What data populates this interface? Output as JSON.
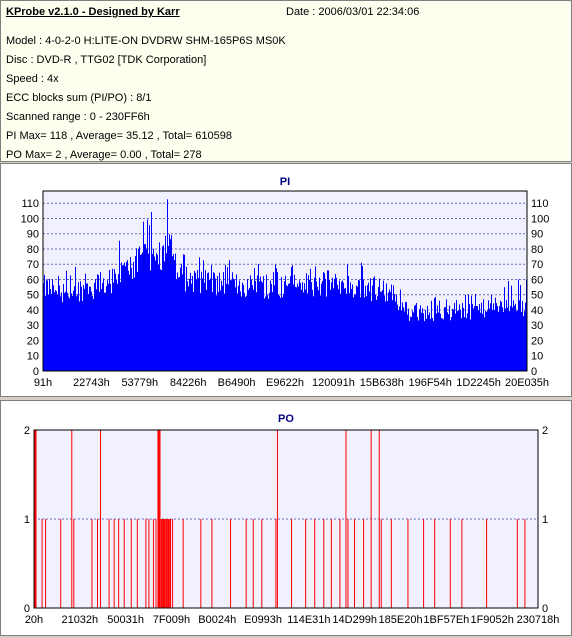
{
  "header": {
    "title": "KProbe v2.1.0 - Designed by Karr",
    "date": "Date : 2006/03/01 22:34:06"
  },
  "info": {
    "lines": [
      "Model : 4-0-2-0 H:LITE-ON DVDRW SHM-165P6S MS0K",
      "Disc : DVD-R , TTG02 [TDK Corporation]",
      "Speed : 4x",
      "ECC blocks sum (PI/PO) : 8/1",
      "Scanned range : 0 - 230FF6h",
      "PI Max= 118 , Average= 35.12 , Total= 610598",
      "PO Max= 2 , Average= 0.00 , Total= 278"
    ]
  },
  "colors": {
    "pi_fill": "#0000ff",
    "po_bar": "#ff0000",
    "plot_bg": "#f0f0ff",
    "grid": "#000080"
  },
  "chart_data": [
    {
      "type": "bar",
      "title": "PI",
      "ylim": [
        0,
        118
      ],
      "yticks": [
        0,
        10,
        20,
        30,
        40,
        50,
        60,
        70,
        80,
        90,
        100,
        110
      ],
      "xtick_labels": [
        "91h",
        "22743h",
        "53779h",
        "84226h",
        "B6490h",
        "E9622h",
        "120091h",
        "15B638h",
        "196F54h",
        "1D2245h",
        "20E035h"
      ],
      "grid": true,
      "envelope": [
        {
          "pos": 0.0,
          "base": 55,
          "peak": 70
        },
        {
          "pos": 0.05,
          "base": 52,
          "peak": 68
        },
        {
          "pos": 0.1,
          "base": 55,
          "peak": 72
        },
        {
          "pos": 0.15,
          "base": 60,
          "peak": 85
        },
        {
          "pos": 0.2,
          "base": 72,
          "peak": 105
        },
        {
          "pos": 0.24,
          "base": 75,
          "peak": 108
        },
        {
          "pos": 0.26,
          "base": 82,
          "peak": 118
        },
        {
          "pos": 0.28,
          "base": 62,
          "peak": 80
        },
        {
          "pos": 0.35,
          "base": 58,
          "peak": 75
        },
        {
          "pos": 0.45,
          "base": 55,
          "peak": 70
        },
        {
          "pos": 0.55,
          "base": 57,
          "peak": 74
        },
        {
          "pos": 0.65,
          "base": 55,
          "peak": 72
        },
        {
          "pos": 0.72,
          "base": 52,
          "peak": 66
        },
        {
          "pos": 0.75,
          "base": 38,
          "peak": 48
        },
        {
          "pos": 0.85,
          "base": 38,
          "peak": 50
        },
        {
          "pos": 0.93,
          "base": 42,
          "peak": 58
        },
        {
          "pos": 1.0,
          "base": 40,
          "peak": 63
        }
      ]
    },
    {
      "type": "bar",
      "title": "PO",
      "ylim": [
        0,
        2
      ],
      "yticks": [
        0,
        1,
        2
      ],
      "xtick_labels": [
        "20h",
        "21032h",
        "50031h",
        "7F009h",
        "B0024h",
        "E0993h",
        "114E31h",
        "14D299h",
        "185E20h",
        "1BF57Eh",
        "1F9052h",
        "230718h"
      ],
      "grid": true,
      "po2_positions": [
        0.003,
        0.074,
        0.131,
        0.245,
        0.249,
        0.482,
        0.618,
        0.668,
        0.684
      ],
      "po1_positions": [
        0.015,
        0.022,
        0.052,
        0.078,
        0.114,
        0.125,
        0.148,
        0.158,
        0.167,
        0.178,
        0.192,
        0.204,
        0.221,
        0.227,
        0.236,
        0.241,
        0.253,
        0.258,
        0.262,
        0.266,
        0.27,
        0.274,
        0.295,
        0.33,
        0.352,
        0.389,
        0.42,
        0.434,
        0.451,
        0.479,
        0.51,
        0.538,
        0.556,
        0.574,
        0.589,
        0.606,
        0.622,
        0.635,
        0.653,
        0.688,
        0.708,
        0.741,
        0.772,
        0.794,
        0.825,
        0.848,
        0.897,
        0.958,
        0.973
      ]
    }
  ]
}
